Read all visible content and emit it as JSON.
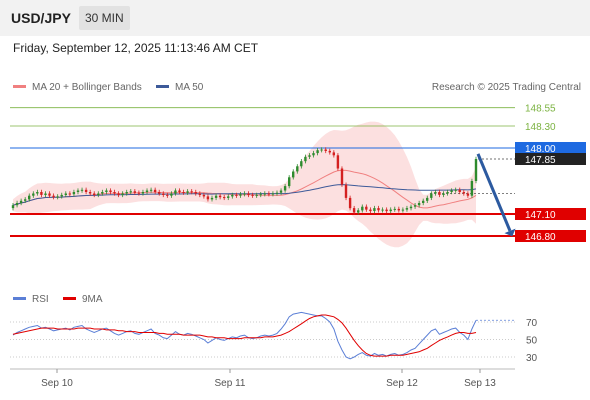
{
  "header": {
    "symbol": "USD/JPY",
    "timeframe": "30 MIN"
  },
  "datetime": "Friday, September 12, 2025 11:13:46 AM CET",
  "legend": {
    "ma20": "MA 20 + Bollinger Bands",
    "ma50": "MA 50",
    "credit": "Research © 2025 Trading Central"
  },
  "colors": {
    "ma20": "#f08080",
    "ma50": "#3d5a99",
    "up": "#2e8b2e",
    "down": "#d42020",
    "band": "#fcdada",
    "resistance": "#7cb342",
    "support": "#e00000",
    "current": "#1e6ae1",
    "arrow": "#2c5aa0",
    "rsi": "#5b7fd6",
    "rsi_ma": "#e00000"
  },
  "chart_data": [
    {
      "type": "candlestick",
      "x_labels": [
        "Sep 10",
        "Sep 11",
        "Sep 12",
        "Sep 13"
      ],
      "levels": [
        {
          "label": "148.55",
          "value": 148.55,
          "kind": "resistance"
        },
        {
          "label": "148.30",
          "value": 148.3,
          "kind": "resistance"
        },
        {
          "label": "148.00",
          "value": 148.0,
          "kind": "pivot"
        },
        {
          "label": "147.85",
          "value": 147.85,
          "kind": "last"
        },
        {
          "label": "147.10",
          "value": 147.1,
          "kind": "support"
        },
        {
          "label": "146.80",
          "value": 146.8,
          "kind": "support"
        }
      ],
      "close": [
        147.22,
        147.25,
        147.28,
        147.3,
        147.35,
        147.38,
        147.4,
        147.36,
        147.38,
        147.35,
        147.33,
        147.34,
        147.36,
        147.38,
        147.37,
        147.4,
        147.42,
        147.43,
        147.4,
        147.38,
        147.36,
        147.38,
        147.4,
        147.42,
        147.4,
        147.38,
        147.36,
        147.38,
        147.4,
        147.41,
        147.39,
        147.38,
        147.4,
        147.42,
        147.43,
        147.4,
        147.38,
        147.36,
        147.35,
        147.38,
        147.42,
        147.4,
        147.39,
        147.41,
        147.4,
        147.38,
        147.36,
        147.34,
        147.3,
        147.32,
        147.35,
        147.33,
        147.32,
        147.34,
        147.36,
        147.35,
        147.37,
        147.38,
        147.36,
        147.35,
        147.36,
        147.37,
        147.38,
        147.37,
        147.38,
        147.39,
        147.42,
        147.48,
        147.6,
        147.68,
        147.75,
        147.82,
        147.88,
        147.9,
        147.93,
        147.97,
        147.98,
        147.96,
        147.94,
        147.9,
        147.72,
        147.5,
        147.32,
        147.18,
        147.12,
        147.15,
        147.2,
        147.16,
        147.14,
        147.18,
        147.15,
        147.16,
        147.14,
        147.16,
        147.17,
        147.15,
        147.16,
        147.18,
        147.2,
        147.22,
        147.25,
        147.28,
        147.32,
        147.38,
        147.4,
        147.36,
        147.38,
        147.4,
        147.42,
        147.43,
        147.4,
        147.38,
        147.35,
        147.55,
        147.85
      ],
      "open": [
        147.18,
        147.22,
        147.25,
        147.28,
        147.3,
        147.35,
        147.38,
        147.4,
        147.36,
        147.38,
        147.35,
        147.33,
        147.34,
        147.36,
        147.38,
        147.37,
        147.4,
        147.42,
        147.43,
        147.4,
        147.38,
        147.36,
        147.38,
        147.4,
        147.42,
        147.4,
        147.38,
        147.36,
        147.38,
        147.4,
        147.41,
        147.39,
        147.38,
        147.4,
        147.42,
        147.43,
        147.4,
        147.38,
        147.36,
        147.35,
        147.38,
        147.42,
        147.4,
        147.39,
        147.41,
        147.4,
        147.38,
        147.36,
        147.34,
        147.3,
        147.32,
        147.35,
        147.33,
        147.32,
        147.34,
        147.36,
        147.35,
        147.37,
        147.38,
        147.36,
        147.35,
        147.36,
        147.37,
        147.38,
        147.37,
        147.38,
        147.39,
        147.42,
        147.48,
        147.6,
        147.68,
        147.75,
        147.82,
        147.88,
        147.9,
        147.93,
        147.97,
        147.98,
        147.96,
        147.94,
        147.9,
        147.72,
        147.5,
        147.32,
        147.18,
        147.12,
        147.15,
        147.2,
        147.16,
        147.14,
        147.18,
        147.15,
        147.16,
        147.14,
        147.16,
        147.17,
        147.15,
        147.16,
        147.18,
        147.2,
        147.22,
        147.25,
        147.28,
        147.32,
        147.38,
        147.4,
        147.36,
        147.38,
        147.4,
        147.42,
        147.43,
        147.4,
        147.38,
        147.35,
        147.55
      ]
    },
    {
      "type": "line",
      "name": "RSI",
      "ma_name": "9MA",
      "y_ticks": [
        70,
        50,
        30
      ],
      "ylim": [
        20,
        80
      ],
      "values": [
        55,
        58,
        60,
        62,
        64,
        65,
        66,
        63,
        64,
        62,
        60,
        61,
        62,
        63,
        61,
        64,
        65,
        66,
        62,
        60,
        58,
        60,
        62,
        63,
        60,
        57,
        55,
        57,
        59,
        60,
        57,
        56,
        58,
        60,
        62,
        57,
        55,
        52,
        51,
        55,
        59,
        56,
        55,
        57,
        56,
        54,
        52,
        50,
        46,
        49,
        52,
        50,
        49,
        51,
        53,
        52,
        54,
        55,
        52,
        51,
        52,
        54,
        55,
        54,
        55,
        57,
        62,
        68,
        76,
        79,
        80,
        81,
        80,
        79,
        78,
        77,
        77,
        74,
        70,
        62,
        48,
        38,
        30,
        28,
        30,
        33,
        35,
        32,
        31,
        34,
        32,
        33,
        31,
        33,
        34,
        32,
        33,
        35,
        38,
        40,
        45,
        50,
        55,
        60,
        62,
        56,
        58,
        60,
        62,
        63,
        58,
        55,
        50,
        62,
        72
      ],
      "ma_values": [
        56,
        57,
        58,
        59,
        60,
        61,
        62,
        63,
        63,
        63,
        63,
        62,
        62,
        62,
        62,
        62,
        63,
        63,
        63,
        63,
        62,
        62,
        62,
        61,
        61,
        61,
        60,
        60,
        59,
        59,
        59,
        58,
        58,
        58,
        58,
        58,
        57,
        57,
        56,
        56,
        56,
        56,
        55,
        55,
        55,
        55,
        55,
        54,
        53,
        53,
        52,
        52,
        52,
        51,
        51,
        51,
        51,
        52,
        52,
        52,
        52,
        52,
        53,
        53,
        53,
        54,
        55,
        57,
        59,
        62,
        65,
        68,
        71,
        74,
        76,
        77,
        78,
        78,
        77,
        76,
        73,
        69,
        63,
        56,
        49,
        43,
        38,
        34,
        32,
        31,
        31,
        31,
        31,
        32,
        32,
        32,
        32,
        33,
        34,
        35,
        36,
        38,
        40,
        43,
        46,
        49,
        51,
        53,
        55,
        57,
        58,
        58,
        57,
        57,
        58
      ]
    }
  ]
}
